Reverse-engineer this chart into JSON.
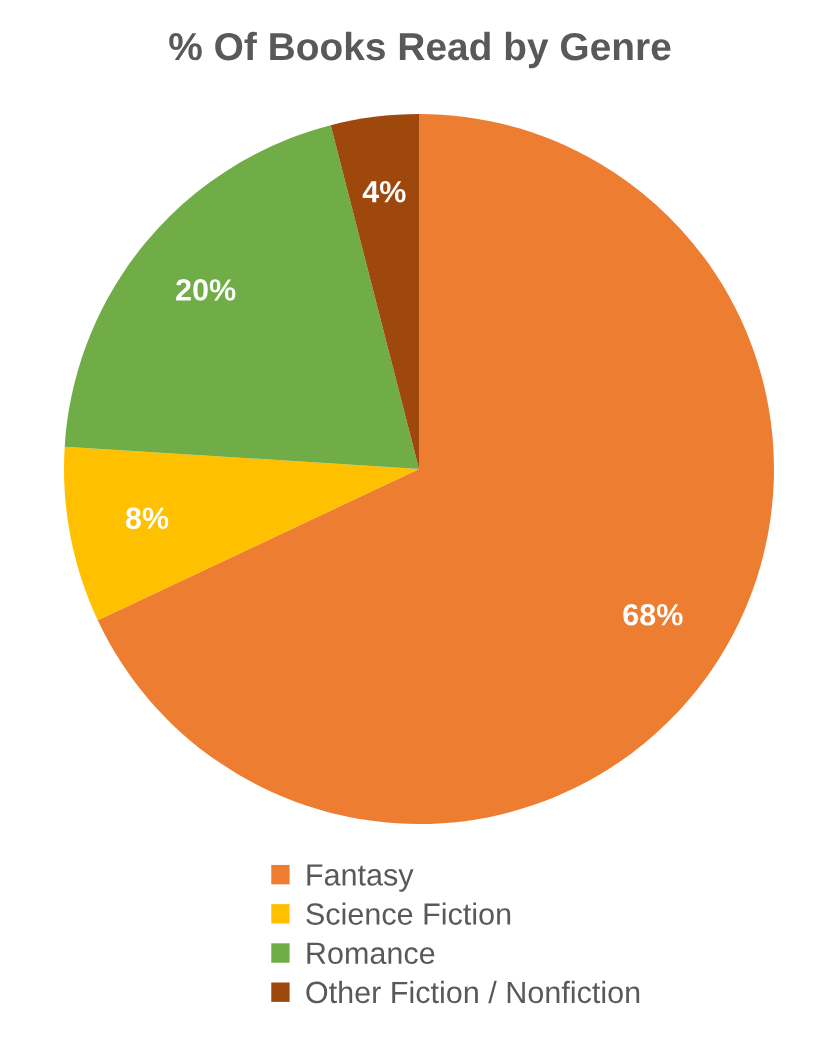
{
  "chart_data": {
    "type": "pie",
    "title": "% Of Books Read by Genre",
    "categories": [
      "Fantasy",
      "Science Fiction",
      "Romance",
      "Other Fiction / Nonfiction"
    ],
    "values": [
      68,
      8,
      20,
      4
    ],
    "value_labels": [
      "68%",
      "8%",
      "20%",
      "4%"
    ],
    "colors": [
      "#ed7d31",
      "#ffc000",
      "#70ad47",
      "#9e480e"
    ],
    "legend": "bottom"
  }
}
